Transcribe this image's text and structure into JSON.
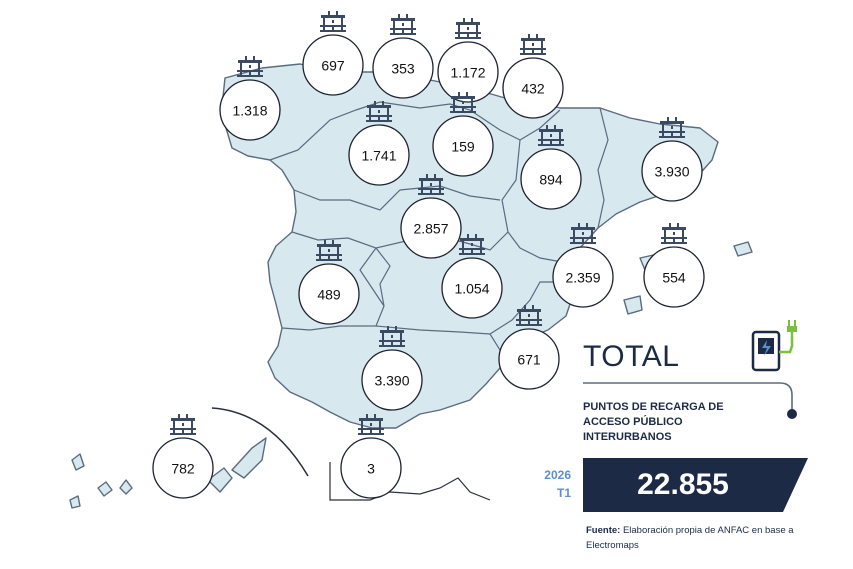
{
  "regions": [
    {
      "name_icon": "charger-icon",
      "value": "1.318"
    },
    {
      "name_icon": "charger-icon",
      "value": "697"
    },
    {
      "name_icon": "charger-icon",
      "value": "353"
    },
    {
      "name_icon": "charger-icon",
      "value": "1.172"
    },
    {
      "name_icon": "charger-icon",
      "value": "432"
    },
    {
      "name_icon": "charger-icon",
      "value": "159"
    },
    {
      "name_icon": "charger-icon",
      "value": "1.741"
    },
    {
      "name_icon": "charger-icon",
      "value": "894"
    },
    {
      "name_icon": "charger-icon",
      "value": "3.930"
    },
    {
      "name_icon": "charger-icon",
      "value": "2.857"
    },
    {
      "name_icon": "charger-icon",
      "value": "489"
    },
    {
      "name_icon": "charger-icon",
      "value": "1.054"
    },
    {
      "name_icon": "charger-icon",
      "value": "2.359"
    },
    {
      "name_icon": "charger-icon",
      "value": "554"
    },
    {
      "name_icon": "charger-icon",
      "value": "671"
    },
    {
      "name_icon": "charger-icon",
      "value": "3.390"
    },
    {
      "name_icon": "charger-icon",
      "value": "3"
    },
    {
      "name_icon": "charger-icon",
      "value": "782"
    }
  ],
  "summary": {
    "title": "TOTAL",
    "subtitle": "PUNTOS DE RECARGA DE ACCESO PÚBLICO INTERURBANOS",
    "year": "2026",
    "quarter": "T1",
    "total": "22.855",
    "source_label": "Fuente:",
    "source_text": "Elaboración propia de ANFAC en base a Electromaps"
  },
  "colors": {
    "land": "#d8e8ef",
    "border": "#5a6b7f",
    "navy": "#1c2a45",
    "accent_blue": "#5b8fd0",
    "plug_green": "#7bbf3a"
  }
}
